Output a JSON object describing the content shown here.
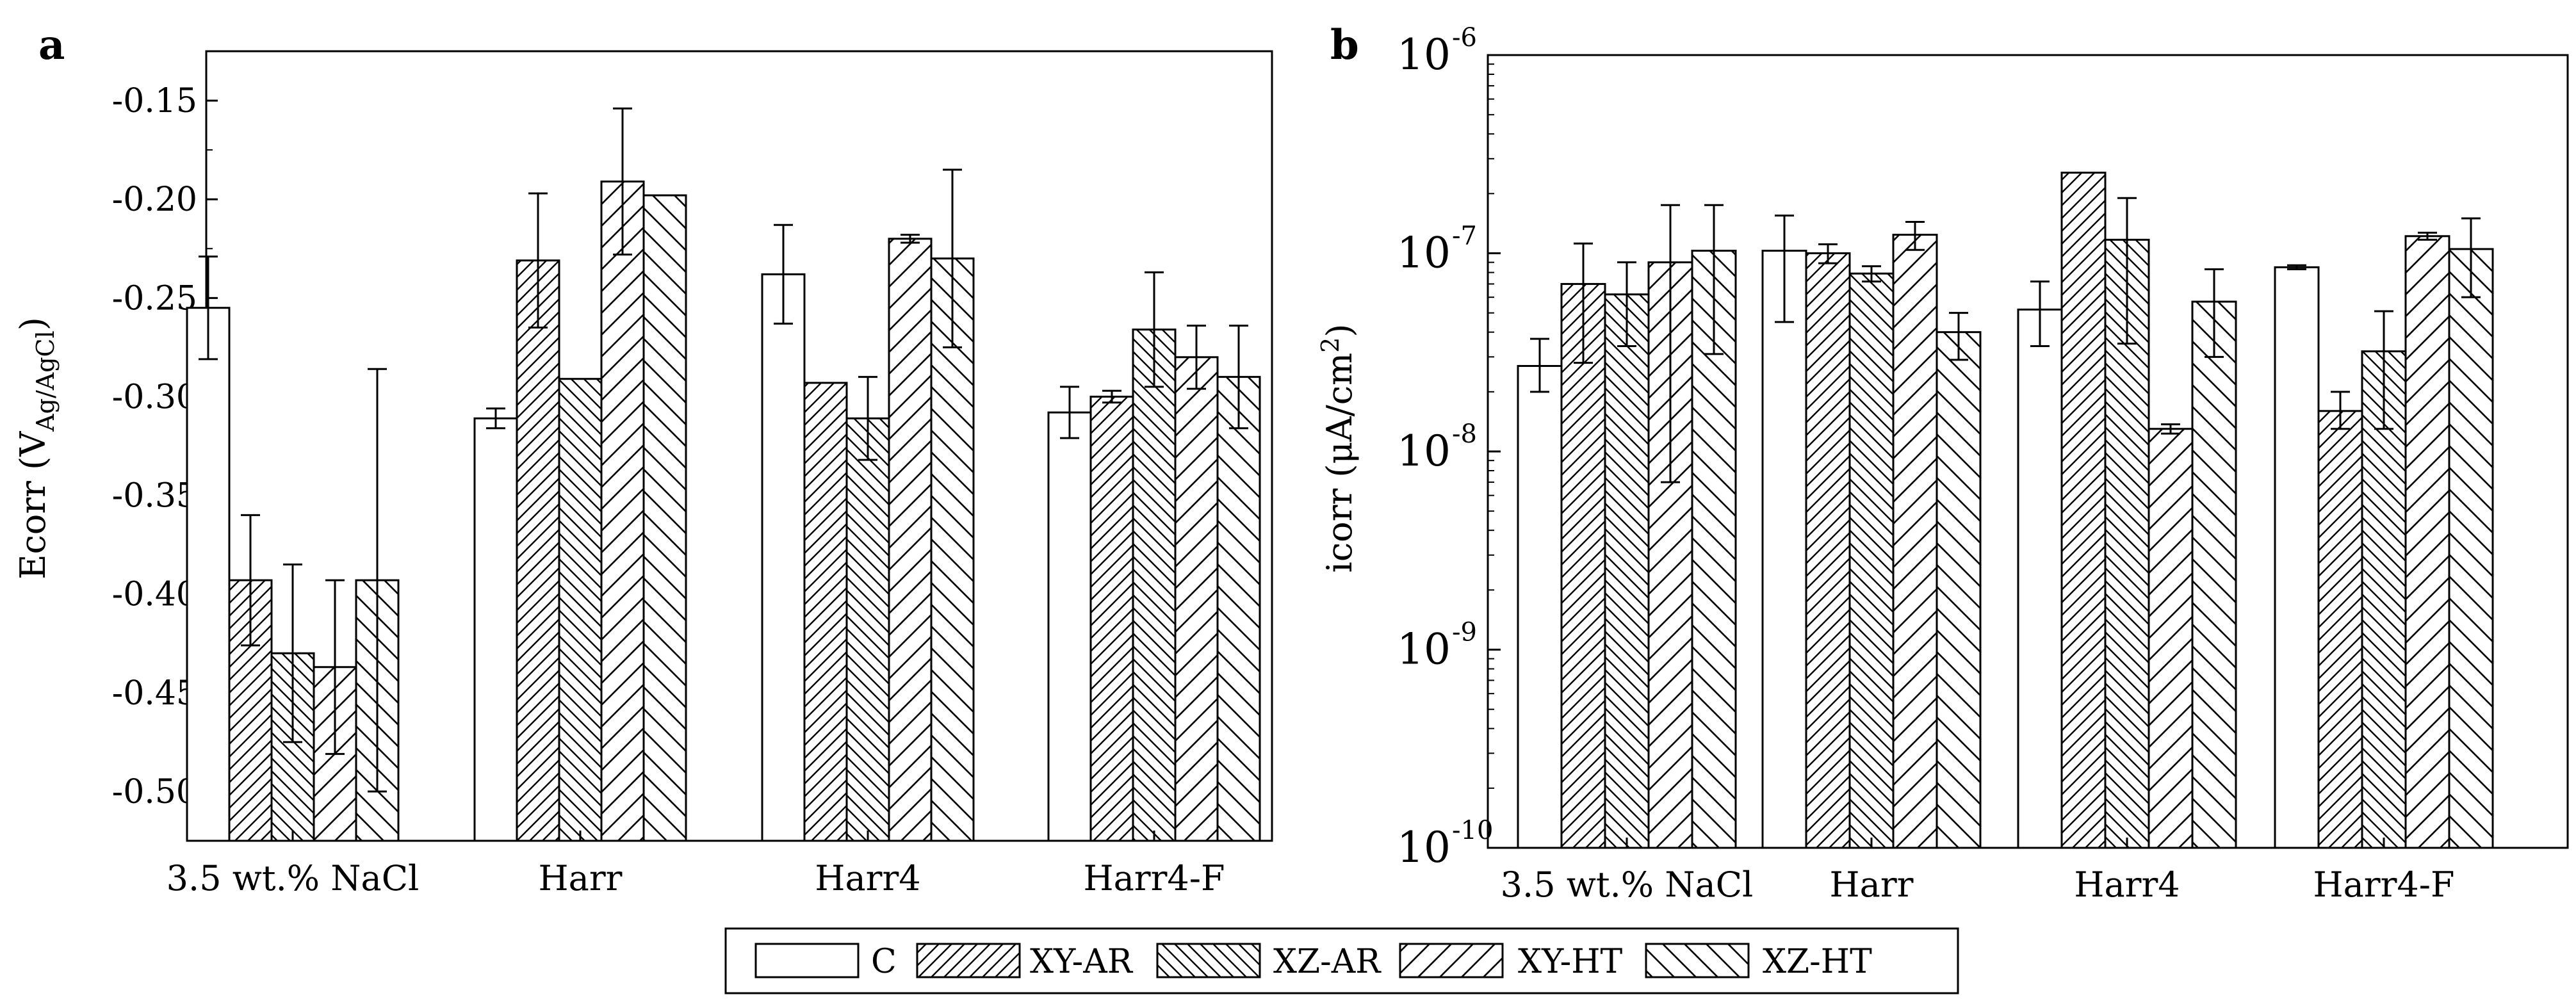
{
  "legend": {
    "labels": [
      "C",
      "XY-AR",
      "XZ-AR",
      "XY-HT",
      "XZ-HT"
    ]
  },
  "chart_data": [
    {
      "panel": "a",
      "type": "bar",
      "ylabel_main": "Ecorr (V",
      "ylabel_sub": "Ag/AgCl",
      "ylabel_end": ")",
      "categories": [
        "3.5 wt.% NaCl",
        "Harr",
        "Harr4",
        "Harr4-F"
      ],
      "ylim": [
        -0.525,
        -0.125
      ],
      "yticks": [
        -0.15,
        -0.2,
        -0.25,
        -0.3,
        -0.35,
        -0.4,
        -0.45,
        -0.5
      ],
      "ytick_labels": [
        "-0.15",
        "-0.20",
        "-0.25",
        "-0.30",
        "-0.35",
        "-0.40",
        "-0.45",
        "-0.50"
      ],
      "series": [
        {
          "name": "C",
          "values": [
            -0.255,
            -0.311,
            -0.238,
            -0.308
          ],
          "err": [
            0.026,
            0.005,
            0.025,
            0.013
          ]
        },
        {
          "name": "XY-AR",
          "values": [
            -0.393,
            -0.231,
            -0.293,
            -0.3
          ],
          "err": [
            0.033,
            0.034,
            0.001,
            0.003
          ]
        },
        {
          "name": "XZ-AR",
          "values": [
            -0.43,
            -0.291,
            -0.311,
            -0.266
          ],
          "err": [
            0.045,
            0.0,
            0.021,
            0.029
          ]
        },
        {
          "name": "XY-HT",
          "values": [
            -0.437,
            -0.191,
            -0.22,
            -0.28
          ],
          "err": [
            0.044,
            0.037,
            0.002,
            0.016
          ]
        },
        {
          "name": "XZ-HT",
          "values": [
            -0.393,
            -0.198,
            -0.23,
            -0.29
          ],
          "err": [
            0.107,
            0.0,
            0.045,
            0.026
          ]
        }
      ]
    },
    {
      "panel": "b",
      "type": "bar",
      "yscale": "log",
      "ylabel_main": "icorr (μA/cm",
      "ylabel_sup": "2",
      "ylabel_end": ")",
      "categories": [
        "3.5 wt.% NaCl",
        "Harr",
        "Harr4",
        "Harr4-F"
      ],
      "ylim_exp": [
        -10,
        -6
      ],
      "ytick_exps": [
        "-6",
        "-7",
        "-8",
        "-9",
        "-10"
      ],
      "ytick_base": "10",
      "series": [
        {
          "name": "C",
          "values": [
            2.7e-08,
            1.03e-07,
            5.2e-08,
            8.5e-08
          ],
          "err_lo": [
            2e-08,
            4.5e-08,
            3.4e-08,
            8.3e-08
          ],
          "err_hi": [
            3.7e-08,
            1.55e-07,
            7.2e-08,
            8.7e-08
          ]
        },
        {
          "name": "XY-AR",
          "values": [
            7e-08,
            1e-07,
            2.55e-07,
            1.6e-08
          ],
          "err_lo": [
            2.8e-08,
            8.9e-08,
            2.55e-07,
            1.3e-08
          ],
          "err_hi": [
            1.12e-07,
            1.11e-07,
            2.55e-07,
            2e-08
          ]
        },
        {
          "name": "XZ-AR",
          "values": [
            6.2e-08,
            7.9e-08,
            1.17e-07,
            3.2e-08
          ],
          "err_lo": [
            3.4e-08,
            7.2e-08,
            3.5e-08,
            1.3e-08
          ],
          "err_hi": [
            9e-08,
            8.6e-08,
            1.9e-07,
            5.1e-08
          ]
        },
        {
          "name": "XY-HT",
          "values": [
            9e-08,
            1.24e-07,
            1.3e-08,
            1.22e-07
          ],
          "err_lo": [
            7e-09,
            1.04e-07,
            1.23e-08,
            1.17e-07
          ],
          "err_hi": [
            1.75e-07,
            1.44e-07,
            1.37e-08,
            1.27e-07
          ]
        },
        {
          "name": "XZ-HT",
          "values": [
            1.03e-07,
            4e-08,
            5.7e-08,
            1.05e-07
          ],
          "err_lo": [
            3.1e-08,
            2.9e-08,
            3e-08,
            6e-08
          ],
          "err_hi": [
            1.75e-07,
            5e-08,
            8.3e-08,
            1.5e-07
          ]
        }
      ]
    }
  ]
}
